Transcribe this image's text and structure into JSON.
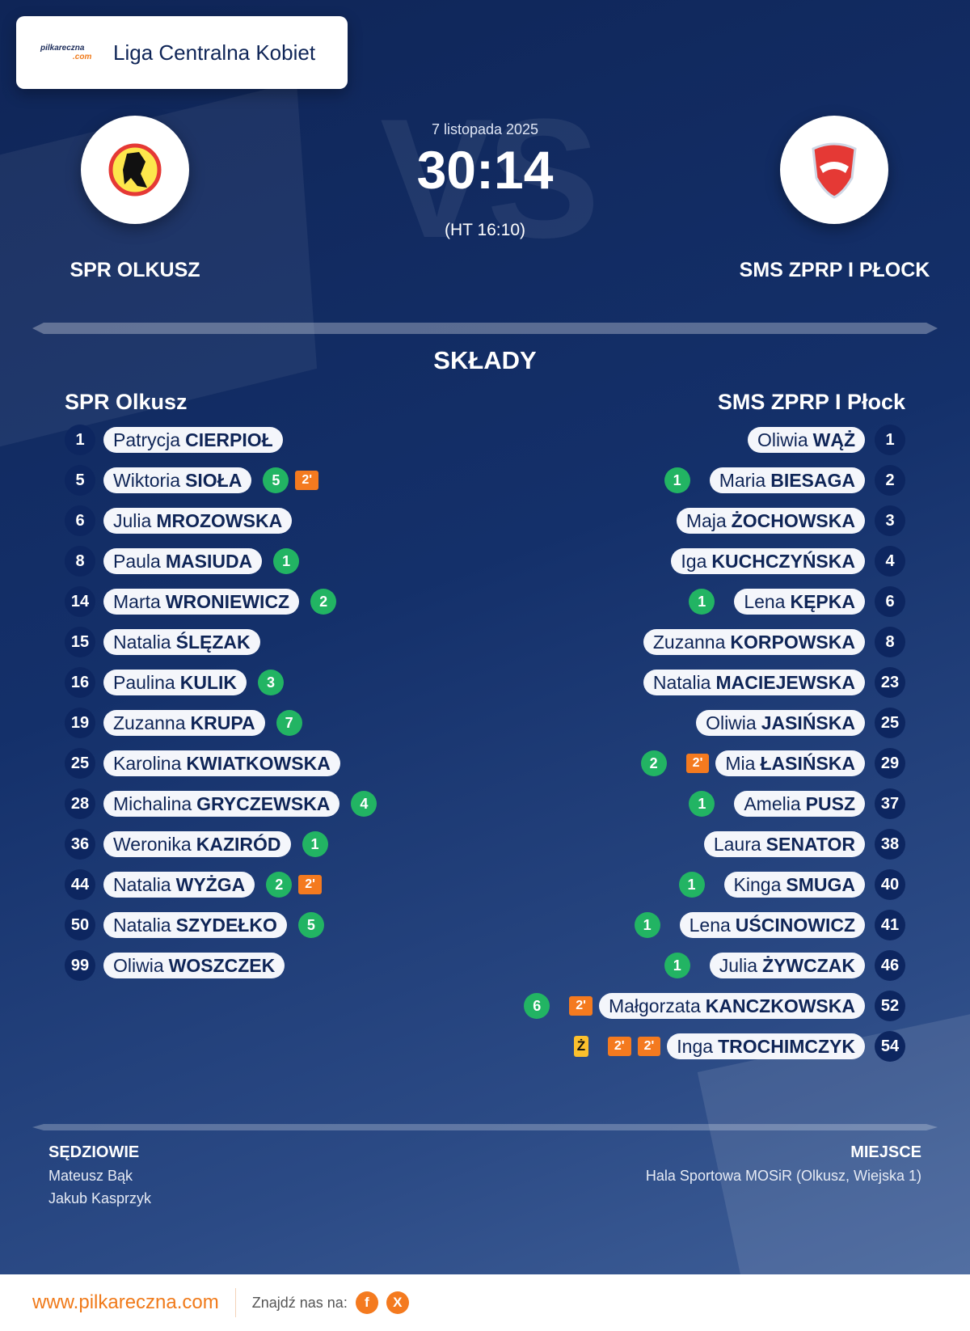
{
  "header": {
    "brand": "pilkareczna",
    "brand_suffix": ".com",
    "league": "Liga Centralna Kobiet"
  },
  "match": {
    "date": "7 listopada 2025",
    "score": "30:14",
    "halftime": "(HT 16:10)",
    "vs": "VS"
  },
  "home": {
    "name_upper": "SPR OLKUSZ",
    "name": "SPR Olkusz",
    "players": [
      {
        "no": "1",
        "first": "Patrycja",
        "last": "CIERPIOŁ",
        "events": []
      },
      {
        "no": "5",
        "first": "Wiktoria",
        "last": "SIOŁA",
        "events": [
          {
            "t": "goal",
            "v": "5"
          },
          {
            "t": "pen",
            "v": "2'"
          }
        ]
      },
      {
        "no": "6",
        "first": "Julia",
        "last": "MROZOWSKA",
        "events": []
      },
      {
        "no": "8",
        "first": "Paula",
        "last": "MASIUDA",
        "events": [
          {
            "t": "goal",
            "v": "1"
          }
        ]
      },
      {
        "no": "14",
        "first": "Marta",
        "last": "WRONIEWICZ",
        "events": [
          {
            "t": "goal",
            "v": "2"
          }
        ]
      },
      {
        "no": "15",
        "first": "Natalia",
        "last": "ŚLĘZAK",
        "events": []
      },
      {
        "no": "16",
        "first": "Paulina",
        "last": "KULIK",
        "events": [
          {
            "t": "goal",
            "v": "3"
          }
        ]
      },
      {
        "no": "19",
        "first": "Zuzanna",
        "last": "KRUPA",
        "events": [
          {
            "t": "goal",
            "v": "7"
          }
        ]
      },
      {
        "no": "25",
        "first": "Karolina",
        "last": "KWIATKOWSKA",
        "events": []
      },
      {
        "no": "28",
        "first": "Michalina",
        "last": "GRYCZEWSKA",
        "events": [
          {
            "t": "goal",
            "v": "4"
          }
        ]
      },
      {
        "no": "36",
        "first": "Weronika",
        "last": "KAZIRÓD",
        "events": [
          {
            "t": "goal",
            "v": "1"
          }
        ]
      },
      {
        "no": "44",
        "first": "Natalia",
        "last": "WYŻGA",
        "events": [
          {
            "t": "goal",
            "v": "2"
          },
          {
            "t": "pen",
            "v": "2'"
          }
        ]
      },
      {
        "no": "50",
        "first": "Natalia",
        "last": "SZYDEŁKO",
        "events": [
          {
            "t": "goal",
            "v": "5"
          }
        ]
      },
      {
        "no": "99",
        "first": "Oliwia",
        "last": "WOSZCZEK",
        "events": []
      }
    ]
  },
  "away": {
    "name_upper": "SMS ZPRP I PŁOCK",
    "name": "SMS ZPRP I Płock",
    "players": [
      {
        "no": "1",
        "first": "Oliwia",
        "last": "WĄŻ",
        "events": []
      },
      {
        "no": "2",
        "first": "Maria",
        "last": "BIESAGA",
        "events": [
          {
            "t": "goal",
            "v": "1"
          }
        ]
      },
      {
        "no": "3",
        "first": "Maja",
        "last": "ŻOCHOWSKA",
        "events": []
      },
      {
        "no": "4",
        "first": "Iga",
        "last": "KUCHCZYŃSKA",
        "events": []
      },
      {
        "no": "6",
        "first": "Lena",
        "last": "KĘPKA",
        "events": [
          {
            "t": "goal",
            "v": "1"
          }
        ]
      },
      {
        "no": "8",
        "first": "Zuzanna",
        "last": "KORPOWSKA",
        "events": []
      },
      {
        "no": "23",
        "first": "Natalia",
        "last": "MACIEJEWSKA",
        "events": []
      },
      {
        "no": "25",
        "first": "Oliwia",
        "last": "JASIŃSKA",
        "events": []
      },
      {
        "no": "29",
        "first": "Mia",
        "last": "ŁASIŃSKA",
        "events": [
          {
            "t": "pen",
            "v": "2'"
          },
          {
            "t": "goal",
            "v": "2"
          }
        ]
      },
      {
        "no": "37",
        "first": "Amelia",
        "last": "PUSZ",
        "events": [
          {
            "t": "goal",
            "v": "1"
          }
        ]
      },
      {
        "no": "38",
        "first": "Laura",
        "last": "SENATOR",
        "events": []
      },
      {
        "no": "40",
        "first": "Kinga",
        "last": "SMUGA",
        "events": [
          {
            "t": "goal",
            "v": "1"
          }
        ]
      },
      {
        "no": "41",
        "first": "Lena",
        "last": "UŚCINOWICZ",
        "events": [
          {
            "t": "goal",
            "v": "1"
          }
        ]
      },
      {
        "no": "46",
        "first": "Julia",
        "last": "ŻYWCZAK",
        "events": [
          {
            "t": "goal",
            "v": "1"
          }
        ]
      },
      {
        "no": "52",
        "first": "Małgorzata",
        "last": "KANCZKOWSKA",
        "events": [
          {
            "t": "pen",
            "v": "2'"
          },
          {
            "t": "goal",
            "v": "6"
          }
        ]
      },
      {
        "no": "54",
        "first": "Inga",
        "last": "TROCHIMCZYK",
        "events": [
          {
            "t": "pen",
            "v": "2'"
          },
          {
            "t": "pen",
            "v": "2'"
          },
          {
            "t": "yellow",
            "v": "Ż"
          }
        ]
      }
    ]
  },
  "lineups_title": "SKŁADY",
  "referees": {
    "title": "SĘDZIOWIE",
    "names": [
      "Mateusz Bąk",
      "Jakub Kasprzyk"
    ]
  },
  "venue": {
    "title": "MIEJSCE",
    "name": "Hala Sportowa MOSiR (Olkusz, Wiejska 1)"
  },
  "footer": {
    "site": "www.pilkareczna.com",
    "find": "Znajdź nas na:",
    "social": [
      "f",
      "X"
    ]
  }
}
